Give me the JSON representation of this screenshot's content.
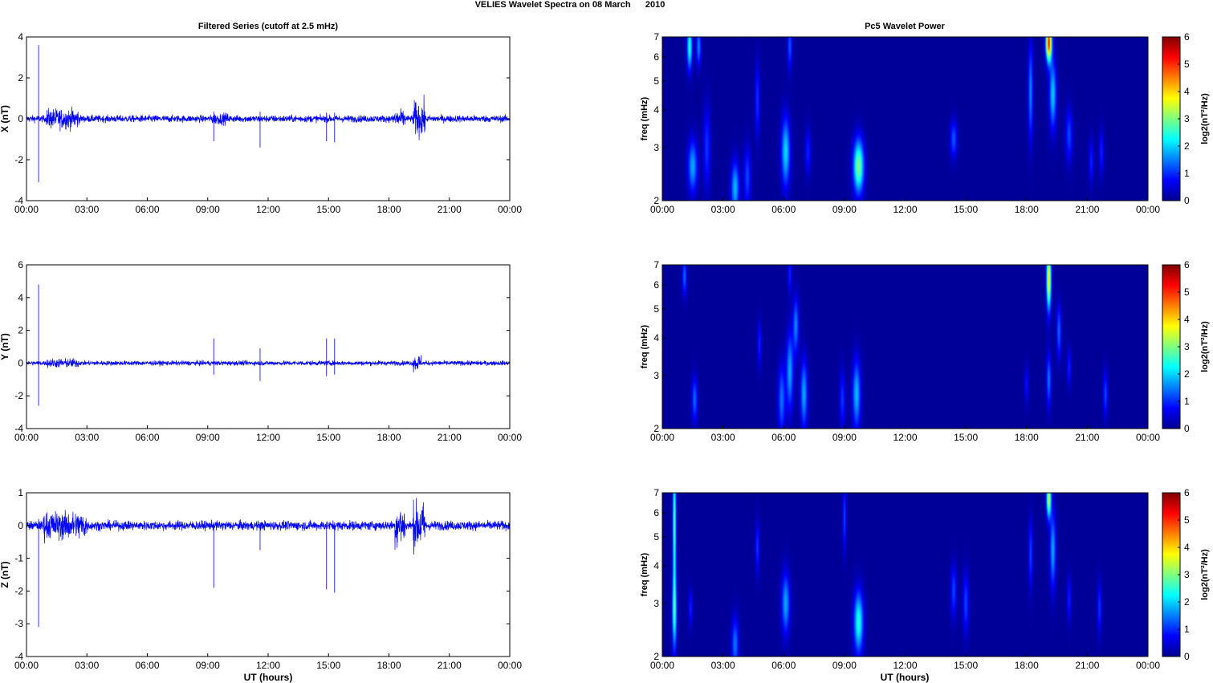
{
  "figure": {
    "suptitle": "VELIES Wavelet Spectra on 08 March      2010",
    "left_title": "Filtered Series (cutoff at 2.5 mHz)",
    "right_title": "Pc5 Wavelet Power",
    "xlabel": "UT (hours)"
  },
  "chart_data": [
    {
      "type": "line",
      "component": "X",
      "ylabel": "X (nT)",
      "ylim": [
        -4,
        4
      ],
      "yticks": [
        "4",
        "2",
        "0",
        "-2",
        "-4"
      ],
      "xlim_hours": [
        0,
        24
      ],
      "xticks": [
        "00:00",
        "03:00",
        "06:00",
        "09:00",
        "12:00",
        "15:00",
        "18:00",
        "21:00",
        "00:00"
      ],
      "color": "#0000ff",
      "series": [
        {
          "baseline_noise_nT": 0.12,
          "bursts": [
            {
              "t_hours": [
                1.0,
                2.6
              ],
              "amp_nT": 0.35
            },
            {
              "t_hours": [
                9.2,
                10.0
              ],
              "amp_nT": 0.2
            },
            {
              "t_hours": [
                18.2,
                18.8
              ],
              "amp_nT": 0.3
            },
            {
              "t_hours": [
                19.2,
                19.8
              ],
              "amp_nT": 0.6
            }
          ],
          "spikes": [
            {
              "t_hours": 0.6,
              "max_nT": 3.6,
              "min_nT": -3.1
            },
            {
              "t_hours": 9.3,
              "max_nT": 0.35,
              "min_nT": -1.1
            },
            {
              "t_hours": 11.6,
              "max_nT": 0.35,
              "min_nT": -1.4
            },
            {
              "t_hours": 14.9,
              "max_nT": 0.3,
              "min_nT": -1.1
            },
            {
              "t_hours": 15.3,
              "max_nT": 0.3,
              "min_nT": -1.15
            }
          ]
        }
      ]
    },
    {
      "type": "line",
      "component": "Y",
      "ylabel": "Y (nT)",
      "ylim": [
        -4,
        6
      ],
      "yticks": [
        "6",
        "4",
        "2",
        "0",
        "-2",
        "-4"
      ],
      "xlim_hours": [
        0,
        24
      ],
      "xticks": [
        "00:00",
        "03:00",
        "06:00",
        "09:00",
        "12:00",
        "15:00",
        "18:00",
        "21:00",
        "00:00"
      ],
      "color": "#0000ff",
      "series": [
        {
          "baseline_noise_nT": 0.1,
          "bursts": [
            {
              "t_hours": [
                1.0,
                2.6
              ],
              "amp_nT": 0.2
            },
            {
              "t_hours": [
                19.2,
                19.6
              ],
              "amp_nT": 0.35
            }
          ],
          "spikes": [
            {
              "t_hours": 0.6,
              "max_nT": 4.8,
              "min_nT": -2.6
            },
            {
              "t_hours": 9.3,
              "max_nT": 1.5,
              "min_nT": -0.7
            },
            {
              "t_hours": 11.6,
              "max_nT": 0.9,
              "min_nT": -1.1
            },
            {
              "t_hours": 14.9,
              "max_nT": 1.5,
              "min_nT": -0.8
            },
            {
              "t_hours": 15.3,
              "max_nT": 1.5,
              "min_nT": -0.7
            }
          ]
        }
      ]
    },
    {
      "type": "line",
      "component": "Z",
      "ylabel": "Z (nT)",
      "ylim": [
        -4,
        1
      ],
      "yticks": [
        "1",
        "0",
        "-1",
        "-2",
        "-3",
        "-4"
      ],
      "xlim_hours": [
        0,
        24
      ],
      "xticks": [
        "00:00",
        "03:00",
        "06:00",
        "09:00",
        "12:00",
        "15:00",
        "18:00",
        "21:00",
        "00:00"
      ],
      "color": "#0000ff",
      "series": [
        {
          "baseline_noise_nT": 0.1,
          "bursts": [
            {
              "t_hours": [
                0.8,
                3.0
              ],
              "amp_nT": 0.3
            },
            {
              "t_hours": [
                18.3,
                18.8
              ],
              "amp_nT": 0.45
            },
            {
              "t_hours": [
                19.2,
                19.8
              ],
              "amp_nT": 0.5
            }
          ],
          "spikes": [
            {
              "t_hours": 0.6,
              "max_nT": 0.2,
              "min_nT": -3.1
            },
            {
              "t_hours": 9.3,
              "max_nT": 0.1,
              "min_nT": -1.9
            },
            {
              "t_hours": 11.6,
              "max_nT": 0.1,
              "min_nT": -0.75
            },
            {
              "t_hours": 14.9,
              "max_nT": 0.1,
              "min_nT": -1.95
            },
            {
              "t_hours": 15.3,
              "max_nT": 0.1,
              "min_nT": -2.05
            }
          ]
        }
      ]
    },
    {
      "type": "heatmap",
      "component": "X",
      "ylabel": "freq (mHz)",
      "y_scale": "log",
      "ylim_mHz": [
        2,
        7
      ],
      "yticks": [
        "7",
        "6",
        "5",
        "4",
        "3",
        "2"
      ],
      "xlim_hours": [
        0,
        24
      ],
      "xticks": [
        "00:00",
        "03:00",
        "06:00",
        "09:00",
        "12:00",
        "15:00",
        "18:00",
        "21:00",
        "00:00"
      ],
      "colorbar": {
        "label": "log2(nT²/Hz)",
        "range": [
          0,
          6
        ],
        "ticks": [
          "6",
          "5",
          "4",
          "3",
          "2",
          "1",
          "0"
        ],
        "colormap": "jet"
      },
      "blobs": [
        {
          "t": 1.35,
          "f": 6.5,
          "dt": 0.09,
          "df": 0.12,
          "p": 2.3
        },
        {
          "t": 1.8,
          "f": 6.5,
          "dt": 0.08,
          "df": 0.1,
          "p": 1.4
        },
        {
          "t": 1.5,
          "f": 2.6,
          "dt": 0.16,
          "df": 0.14,
          "p": 1.6
        },
        {
          "t": 2.2,
          "f": 3.0,
          "dt": 0.12,
          "df": 0.22,
          "p": 0.9
        },
        {
          "t": 3.6,
          "f": 2.2,
          "dt": 0.14,
          "df": 0.14,
          "p": 1.7
        },
        {
          "t": 4.2,
          "f": 2.4,
          "dt": 0.12,
          "df": 0.16,
          "p": 1.0
        },
        {
          "t": 4.7,
          "f": 4.3,
          "dt": 0.08,
          "df": 0.2,
          "p": 0.9
        },
        {
          "t": 6.1,
          "f": 2.9,
          "dt": 0.15,
          "df": 0.18,
          "p": 1.9
        },
        {
          "t": 6.3,
          "f": 6.5,
          "dt": 0.08,
          "df": 0.12,
          "p": 1.1
        },
        {
          "t": 7.2,
          "f": 2.9,
          "dt": 0.1,
          "df": 0.12,
          "p": 0.8
        },
        {
          "t": 9.7,
          "f": 2.6,
          "dt": 0.18,
          "df": 0.14,
          "p": 2.9
        },
        {
          "t": 14.4,
          "f": 3.2,
          "dt": 0.12,
          "df": 0.1,
          "p": 1.1
        },
        {
          "t": 18.2,
          "f": 4.6,
          "dt": 0.08,
          "df": 0.25,
          "p": 1.4
        },
        {
          "t": 19.1,
          "f": 6.7,
          "dt": 0.1,
          "df": 0.1,
          "p": 4.9
        },
        {
          "t": 19.3,
          "f": 4.5,
          "dt": 0.12,
          "df": 0.18,
          "p": 1.8
        },
        {
          "t": 20.1,
          "f": 3.3,
          "dt": 0.12,
          "df": 0.14,
          "p": 1.0
        },
        {
          "t": 21.2,
          "f": 2.7,
          "dt": 0.08,
          "df": 0.12,
          "p": 0.8
        },
        {
          "t": 21.7,
          "f": 2.9,
          "dt": 0.08,
          "df": 0.12,
          "p": 0.8
        }
      ]
    },
    {
      "type": "heatmap",
      "component": "Y",
      "ylabel": "freq (mHz)",
      "y_scale": "log",
      "ylim_mHz": [
        2,
        7
      ],
      "yticks": [
        "7",
        "6",
        "5",
        "4",
        "3",
        "2"
      ],
      "xlim_hours": [
        0,
        24
      ],
      "xticks": [
        "00:00",
        "03:00",
        "06:00",
        "09:00",
        "12:00",
        "15:00",
        "18:00",
        "21:00",
        "00:00"
      ],
      "colorbar": {
        "label": "log2(nT²/Hz)",
        "range": [
          0,
          6
        ],
        "ticks": [
          "6",
          "5",
          "4",
          "3",
          "2",
          "1",
          "0"
        ],
        "colormap": "jet"
      },
      "blobs": [
        {
          "t": 1.1,
          "f": 6.4,
          "dt": 0.08,
          "df": 0.1,
          "p": 1.2
        },
        {
          "t": 1.6,
          "f": 2.5,
          "dt": 0.1,
          "df": 0.12,
          "p": 1.2
        },
        {
          "t": 4.8,
          "f": 3.8,
          "dt": 0.07,
          "df": 0.12,
          "p": 0.8
        },
        {
          "t": 5.9,
          "f": 2.5,
          "dt": 0.12,
          "df": 0.18,
          "p": 1.3
        },
        {
          "t": 6.3,
          "f": 3.1,
          "dt": 0.12,
          "df": 0.2,
          "p": 1.6
        },
        {
          "t": 6.6,
          "f": 4.4,
          "dt": 0.1,
          "df": 0.15,
          "p": 1.4
        },
        {
          "t": 7.0,
          "f": 2.6,
          "dt": 0.12,
          "df": 0.18,
          "p": 1.6
        },
        {
          "t": 6.3,
          "f": 6.5,
          "dt": 0.07,
          "df": 0.1,
          "p": 0.8
        },
        {
          "t": 8.9,
          "f": 2.5,
          "dt": 0.1,
          "df": 0.15,
          "p": 0.9
        },
        {
          "t": 9.6,
          "f": 2.6,
          "dt": 0.14,
          "df": 0.18,
          "p": 1.7
        },
        {
          "t": 18.0,
          "f": 2.8,
          "dt": 0.07,
          "df": 0.1,
          "p": 0.7
        },
        {
          "t": 19.1,
          "f": 6.3,
          "dt": 0.08,
          "df": 0.16,
          "p": 3.8
        },
        {
          "t": 19.1,
          "f": 2.9,
          "dt": 0.08,
          "df": 0.14,
          "p": 1.3
        },
        {
          "t": 19.6,
          "f": 4.2,
          "dt": 0.08,
          "df": 0.14,
          "p": 1.2
        },
        {
          "t": 20.1,
          "f": 3.2,
          "dt": 0.07,
          "df": 0.1,
          "p": 0.8
        },
        {
          "t": 21.9,
          "f": 2.6,
          "dt": 0.08,
          "df": 0.12,
          "p": 1.0
        }
      ]
    },
    {
      "type": "heatmap",
      "component": "Z",
      "ylabel": "freq (mHz)",
      "y_scale": "log",
      "ylim_mHz": [
        2,
        7
      ],
      "yticks": [
        "7",
        "6",
        "5",
        "4",
        "3",
        "2"
      ],
      "xlim_hours": [
        0,
        24
      ],
      "xticks": [
        "00:00",
        "03:00",
        "06:00",
        "09:00",
        "12:00",
        "15:00",
        "18:00",
        "21:00",
        "00:00"
      ],
      "colorbar": {
        "label": "log2(nT²/Hz)",
        "range": [
          0,
          6
        ],
        "ticks": [
          "6",
          "5",
          "4",
          "3",
          "2",
          "1",
          "0"
        ],
        "colormap": "jet"
      },
      "blobs": [
        {
          "t": 0.6,
          "f": 5.5,
          "dt": 0.06,
          "df": 0.35,
          "p": 2.6
        },
        {
          "t": 0.6,
          "f": 2.8,
          "dt": 0.08,
          "df": 0.2,
          "p": 2.2
        },
        {
          "t": 1.4,
          "f": 2.9,
          "dt": 0.07,
          "df": 0.1,
          "p": 0.8
        },
        {
          "t": 3.6,
          "f": 2.2,
          "dt": 0.12,
          "df": 0.14,
          "p": 1.3
        },
        {
          "t": 4.7,
          "f": 4.6,
          "dt": 0.07,
          "df": 0.14,
          "p": 0.9
        },
        {
          "t": 6.1,
          "f": 3.0,
          "dt": 0.14,
          "df": 0.16,
          "p": 1.6
        },
        {
          "t": 9.0,
          "f": 5.8,
          "dt": 0.06,
          "df": 0.18,
          "p": 1.0
        },
        {
          "t": 9.7,
          "f": 2.6,
          "dt": 0.16,
          "df": 0.16,
          "p": 2.3
        },
        {
          "t": 14.4,
          "f": 3.3,
          "dt": 0.1,
          "df": 0.14,
          "p": 1.0
        },
        {
          "t": 15.0,
          "f": 3.0,
          "dt": 0.1,
          "df": 0.16,
          "p": 1.0
        },
        {
          "t": 18.2,
          "f": 4.4,
          "dt": 0.07,
          "df": 0.18,
          "p": 1.0
        },
        {
          "t": 19.1,
          "f": 6.7,
          "dt": 0.08,
          "df": 0.1,
          "p": 3.3
        },
        {
          "t": 19.3,
          "f": 4.5,
          "dt": 0.1,
          "df": 0.2,
          "p": 1.6
        },
        {
          "t": 20.1,
          "f": 3.1,
          "dt": 0.07,
          "df": 0.12,
          "p": 0.8
        },
        {
          "t": 21.6,
          "f": 2.9,
          "dt": 0.07,
          "df": 0.14,
          "p": 0.9
        }
      ]
    }
  ]
}
